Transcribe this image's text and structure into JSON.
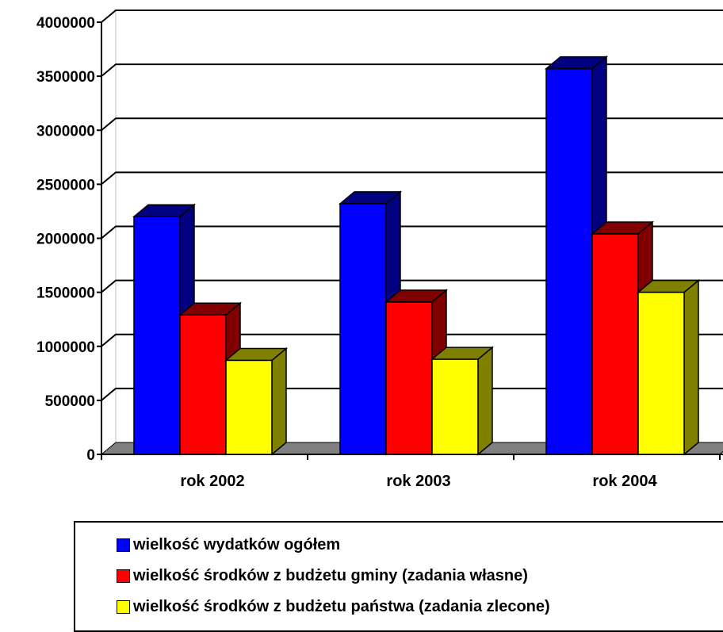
{
  "chart_data": {
    "type": "bar",
    "categories": [
      "rok 2002",
      "rok 2003",
      "rok 2004"
    ],
    "series": [
      {
        "name": "wielkość wydatków ogółem",
        "values": [
          2200000,
          2320000,
          3570000
        ],
        "color": "#0000ff",
        "side_color": "#000080"
      },
      {
        "name": "wielkość środków z budżetu gminy (zadania własne)",
        "values": [
          1290000,
          1410000,
          2040000
        ],
        "color": "#ff0000",
        "side_color": "#800000"
      },
      {
        "name": "wielkość środków z budżetu państwa (zadania zlecone)",
        "values": [
          870000,
          880000,
          1500000
        ],
        "color": "#ffff00",
        "side_color": "#808000"
      }
    ],
    "yticks": [
      "0",
      "500000",
      "1000000",
      "1500000",
      "2000000",
      "2500000",
      "3000000",
      "3500000",
      "4000000"
    ],
    "ylim": [
      0,
      4000000
    ],
    "grid": true,
    "legend_position": "bottom",
    "title": "",
    "xlabel": "",
    "ylabel": ""
  }
}
